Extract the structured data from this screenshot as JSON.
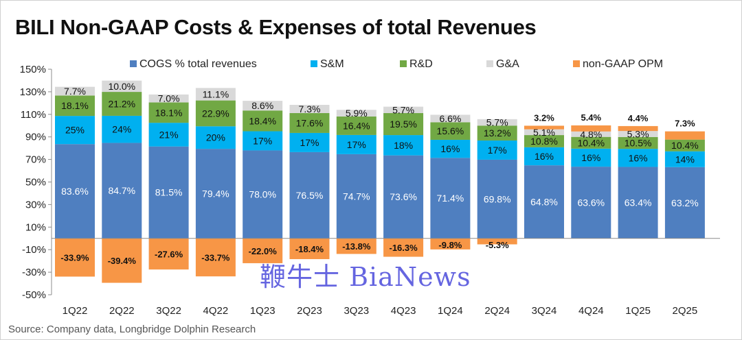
{
  "title": "BILI Non-GAAP Costs & Expenses of total Revenues",
  "source": "Source: Company data, Longbridge Dolphin Research",
  "watermark": "鞭牛士 BiaNews",
  "colors": {
    "cogs": "#4f7fc0",
    "sm": "#00b0f0",
    "rd": "#71a844",
    "ga": "#d9d9d9",
    "opm": "#f79646"
  },
  "chart_data": {
    "type": "bar",
    "stacked": true,
    "title": "BILI Non-GAAP Costs & Expenses of total Revenues",
    "xlabel": "",
    "ylabel": "",
    "ylim": [
      -50,
      150
    ],
    "yticks": [
      150,
      130,
      110,
      90,
      70,
      50,
      30,
      10,
      -10,
      -30,
      -50
    ],
    "ytick_labels": [
      "150%",
      "130%",
      "110%",
      "90%",
      "70%",
      "50%",
      "30%",
      "10%",
      "-10%",
      "-30%",
      "-50%"
    ],
    "grid": false,
    "legend_position": "top",
    "categories": [
      "1Q22",
      "2Q22",
      "3Q22",
      "4Q22",
      "1Q23",
      "2Q23",
      "3Q23",
      "4Q23",
      "1Q24",
      "2Q24",
      "3Q24",
      "4Q24",
      "1Q25",
      "2Q25"
    ],
    "series": [
      {
        "key": "cogs",
        "name": "COGS % total revenues",
        "values": [
          83.6,
          84.7,
          81.5,
          79.4,
          78.0,
          76.5,
          74.7,
          73.6,
          71.4,
          69.8,
          64.8,
          63.6,
          63.4,
          63.2
        ],
        "labels": [
          "83.6%",
          "84.7%",
          "81.5%",
          "79.4%",
          "78.0%",
          "76.5%",
          "74.7%",
          "73.6%",
          "71.4%",
          "69.8%",
          "64.8%",
          "63.6%",
          "63.4%",
          "63.2%"
        ]
      },
      {
        "key": "sm",
        "name": "S&M",
        "values": [
          25,
          24,
          21,
          20,
          17,
          17,
          17,
          18,
          16,
          17,
          16,
          16,
          16,
          14
        ],
        "labels": [
          "25%",
          "24%",
          "21%",
          "20%",
          "17%",
          "17%",
          "17%",
          "18%",
          "16%",
          "17%",
          "16%",
          "16%",
          "16%",
          "14%"
        ]
      },
      {
        "key": "rd",
        "name": "R&D",
        "values": [
          18.1,
          21.2,
          18.1,
          22.9,
          18.4,
          17.6,
          16.4,
          19.5,
          15.6,
          13.2,
          10.8,
          10.4,
          10.5,
          10.4
        ],
        "labels": [
          "18.1%",
          "21.2%",
          "18.1%",
          "22.9%",
          "18.4%",
          "17.6%",
          "16.4%",
          "19.5%",
          "15.6%",
          "13.2%",
          "10.8%",
          "10.4%",
          "10.5%",
          "10.4%"
        ]
      },
      {
        "key": "ga",
        "name": "G&A",
        "values": [
          7.7,
          10.0,
          7.0,
          11.1,
          8.6,
          7.3,
          5.9,
          5.7,
          6.6,
          5.7,
          5.1,
          4.8,
          5.3,
          0
        ],
        "labels": [
          "7.7%",
          "10.0%",
          "7.0%",
          "11.1%",
          "8.6%",
          "7.3%",
          "5.9%",
          "5.7%",
          "6.6%",
          "5.7%",
          "5.1%",
          "4.8%",
          "5.3%",
          ""
        ]
      },
      {
        "key": "opm",
        "name": "non-GAAP OPM",
        "values": [
          -33.9,
          -39.4,
          -27.6,
          -33.7,
          -22.0,
          -18.4,
          -13.8,
          -16.3,
          -9.8,
          -5.3,
          3.2,
          5.4,
          4.4,
          7.3
        ],
        "labels": [
          "-33.9%",
          "-39.4%",
          "-27.6%",
          "-33.7%",
          "-22.0%",
          "-18.4%",
          "-13.8%",
          "-16.3%",
          "-9.8%",
          "-5.3%",
          "3.2%",
          "5.4%",
          "4.4%",
          "7.3%"
        ]
      }
    ]
  }
}
